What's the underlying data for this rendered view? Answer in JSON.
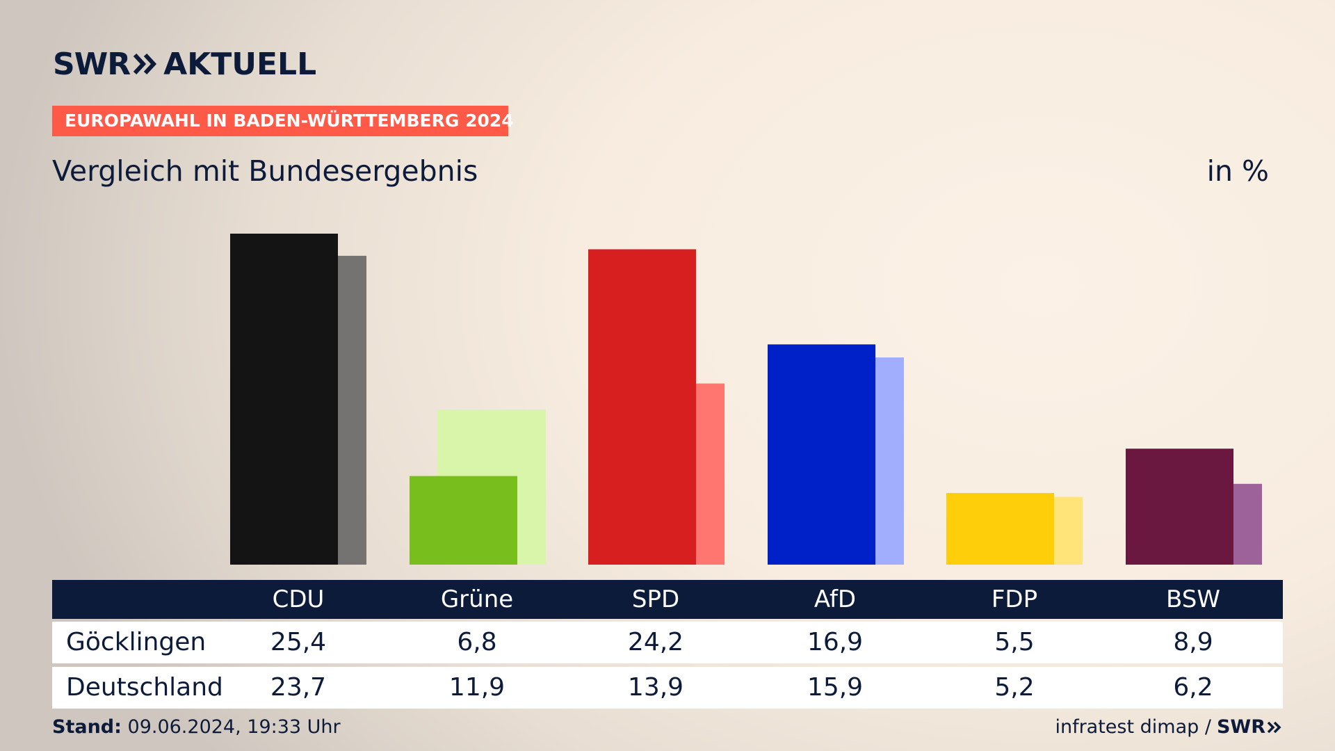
{
  "brand": {
    "logo_swr": "SWR",
    "logo_name": "AKTUELL",
    "footer_logo": "SWR"
  },
  "header": {
    "badge": "EUROPAWAHL IN BADEN-WÜRTTEMBERG 2024",
    "subtitle": "Vergleich mit Bundesergebnis",
    "unit": "in %"
  },
  "table": {
    "rows": [
      {
        "label": "Göcklingen",
        "values": [
          "25,4",
          "6,8",
          "24,2",
          "16,9",
          "5,5",
          "8,9"
        ]
      },
      {
        "label": "Deutschland",
        "values": [
          "23,7",
          "11,9",
          "13,9",
          "15,9",
          "5,2",
          "6,2"
        ]
      }
    ]
  },
  "footer": {
    "stand_label": "Stand:",
    "stand_value": "09.06.2024, 19:33 Uhr",
    "source": "infratest dimap /"
  },
  "chart_data": {
    "type": "bar",
    "categories": [
      "CDU",
      "Grüne",
      "SPD",
      "AfD",
      "FDP",
      "BSW"
    ],
    "series": [
      {
        "name": "Göcklingen",
        "values": [
          25.4,
          6.8,
          24.2,
          16.9,
          5.5,
          8.9
        ]
      },
      {
        "name": "Deutschland",
        "values": [
          23.7,
          11.9,
          13.9,
          15.9,
          5.2,
          6.2
        ]
      }
    ],
    "ylim": [
      0,
      25.4
    ],
    "grid": false,
    "colors_primary": [
      "#141414",
      "#78be1c",
      "#d81f1f",
      "#0021c8",
      "#ffce0a",
      "#6b1840"
    ],
    "colors_secondary": [
      "#757372",
      "#d8f5a9",
      "#ff7570",
      "#a1aefe",
      "#ffe479",
      "#9c6299"
    ]
  }
}
